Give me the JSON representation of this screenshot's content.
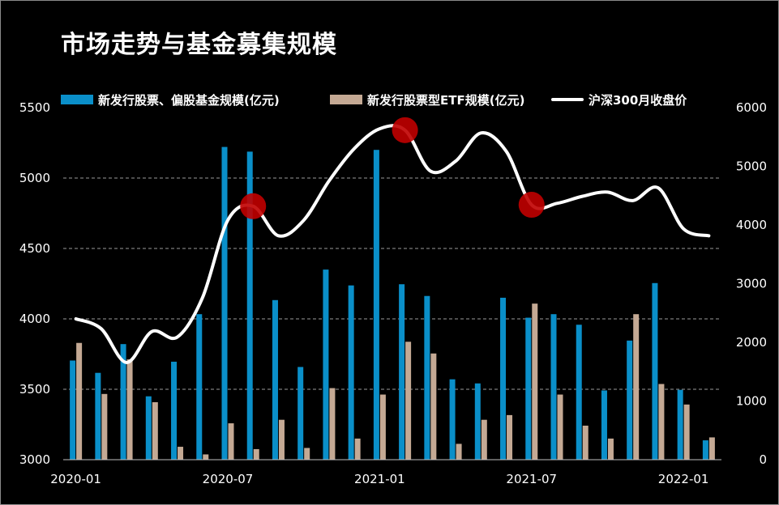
{
  "chart_data": {
    "type": "bar",
    "title": "市场走势与基金募集规模",
    "legend": [
      {
        "name": "新发行股票、偏股基金规模(亿元)",
        "color": "#0a8fc9",
        "kind": "bar"
      },
      {
        "name": "新发行股票型ETF规模(亿元)",
        "color": "#c4a994",
        "kind": "bar"
      },
      {
        "name": "沪深300月收盘价",
        "color": "#ffffff",
        "kind": "line"
      }
    ],
    "legend_position": "top",
    "x_tick_labels": [
      "2020-01",
      "2020-07",
      "2021-01",
      "2021-07",
      "2022-01"
    ],
    "x_tick_indices": [
      0,
      6,
      12,
      18,
      24
    ],
    "categories": [
      "2020-01",
      "2020-02",
      "2020-03",
      "2020-04",
      "2020-05",
      "2020-06",
      "2020-07",
      "2020-08",
      "2020-09",
      "2020-10",
      "2020-11",
      "2020-12",
      "2021-01",
      "2021-02",
      "2021-03",
      "2021-04",
      "2021-05",
      "2021-06",
      "2021-07",
      "2021-08",
      "2021-09",
      "2021-10",
      "2021-11",
      "2021-12",
      "2022-01",
      "2022-02"
    ],
    "left_axis": {
      "ylim": [
        3000,
        5500
      ],
      "ticks": [
        3000,
        3500,
        4000,
        4500,
        5000,
        5500
      ]
    },
    "right_axis": {
      "ylim": [
        0,
        6000
      ],
      "ticks": [
        0,
        1000,
        2000,
        3000,
        4000,
        5000,
        6000
      ]
    },
    "grid": "dashed horizontal",
    "series": [
      {
        "name": "新发行股票、偏股基金规模(亿元)",
        "type": "bar",
        "axis": "right",
        "color": "#0a8fc9",
        "values": [
          1690,
          1480,
          1970,
          1080,
          1670,
          2480,
          5330,
          5250,
          2720,
          1580,
          3240,
          2970,
          5280,
          2990,
          2790,
          1370,
          1300,
          2760,
          2420,
          2480,
          2300,
          1180,
          2030,
          3010,
          1190,
          330
        ]
      },
      {
        "name": "新发行股票型ETF规模(亿元)",
        "type": "bar",
        "axis": "right",
        "color": "#c4a994",
        "values": [
          1990,
          1120,
          1710,
          980,
          220,
          90,
          620,
          180,
          680,
          200,
          1220,
          360,
          1110,
          2010,
          1810,
          270,
          680,
          760,
          2660,
          1110,
          580,
          360,
          2480,
          1290,
          940,
          380
        ]
      },
      {
        "name": "沪深300月收盘价",
        "type": "line",
        "axis": "left",
        "color": "#ffffff",
        "values": [
          4000,
          3930,
          3690,
          3910,
          3870,
          4150,
          4700,
          4800,
          4590,
          4700,
          4980,
          5210,
          5350,
          5340,
          5050,
          5120,
          5320,
          5190,
          4810,
          4820,
          4870,
          4900,
          4840,
          4930,
          4640,
          4590
        ]
      }
    ],
    "highlight_points": [
      7,
      13,
      18
    ]
  }
}
